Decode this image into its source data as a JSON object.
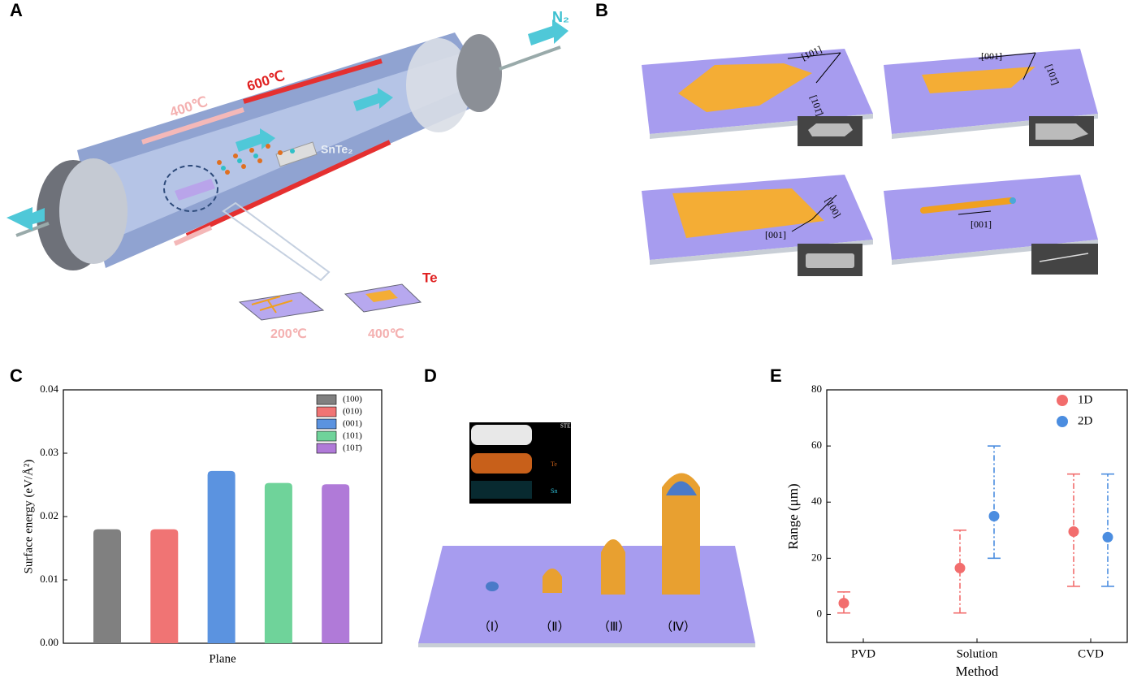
{
  "panels": [
    "A",
    "B",
    "C",
    "D",
    "E"
  ],
  "panel_a": {
    "gas": "N₂",
    "hot_zone": "600℃",
    "warm_zone": "400℃",
    "source": "SnTe₂",
    "product": "Te",
    "substrate_temps": [
      "200℃",
      "400℃"
    ]
  },
  "panel_b": {
    "directions": [
      [
        "[101]",
        "[101̄]"
      ],
      [
        "[001]",
        "[101̄]"
      ],
      [
        "[100]",
        "[001]"
      ],
      [
        "[001]"
      ]
    ]
  },
  "panel_d": {
    "inset_title": "STEM HAADF detector",
    "inset_labels": [
      "Te",
      "Sn"
    ],
    "stages": [
      "（Ⅰ）",
      "（Ⅱ）",
      "（Ⅲ）",
      "（Ⅳ）"
    ]
  },
  "chart_data": [
    {
      "type": "bar",
      "xlabel": "Plane",
      "ylabel": "Surface energy (eV/Å²)",
      "categories": [
        "(100)",
        "(010)",
        "(001)",
        "(101)",
        "(101̄)"
      ],
      "values": [
        0.018,
        0.018,
        0.0272,
        0.0253,
        0.0251
      ],
      "colors": [
        "#808080",
        "#f07474",
        "#5b93e0",
        "#6fd39a",
        "#b07ad8"
      ],
      "ylim": [
        0,
        0.04
      ],
      "yticks": [
        {
          "value": 0,
          "label": "0.00"
        },
        0.01,
        0.02,
        0.03,
        0.04
      ]
    },
    {
      "type": "scatter",
      "xlabel": "Method",
      "ylabel": "Range (μm)",
      "categories": [
        "PVD",
        "Solution",
        "CVD"
      ],
      "series": [
        {
          "name": "1D",
          "color": "#f26d6d",
          "values": [
            4,
            16.5,
            29.5
          ],
          "lower": [
            0.5,
            0.5,
            10
          ],
          "upper": [
            8,
            30,
            50
          ]
        },
        {
          "name": "2D",
          "color": "#4b8de0",
          "values": [
            null,
            35,
            27.5
          ],
          "lower": [
            null,
            20,
            10
          ],
          "upper": [
            null,
            60,
            50
          ]
        }
      ],
      "ylim": [
        -10,
        80
      ],
      "yticks": [
        0,
        20,
        40,
        60,
        80
      ]
    }
  ]
}
